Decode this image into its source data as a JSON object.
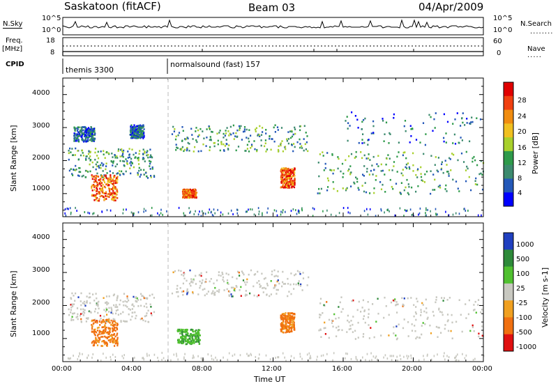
{
  "header": {
    "station": "Saskatoon (fitACF)",
    "beam": "Beam 03",
    "date": "04/Apr/2009"
  },
  "strip": {
    "nsky_label": "N.Sky",
    "nsearch_label": "N.Search",
    "nave_label": "Nave",
    "freq_label": "Freq.",
    "mhz_label": "[MHz]",
    "cpid_label": "CPID",
    "left_ticks_top": [
      "10^5",
      "10^0"
    ],
    "right_ticks_top": [
      "10^5",
      "10^0"
    ],
    "left_ticks_freq": [
      "18",
      "8"
    ],
    "right_ticks_nave": [
      "60",
      "0"
    ],
    "cpid_modes": [
      "themis 3300",
      "normalsound (fast) 157"
    ]
  },
  "colors": {
    "power": [
      "#0000ff",
      "#2458b8",
      "#3c8a6e",
      "#2e9a4a",
      "#a8d02c",
      "#f0c020",
      "#f08c10",
      "#f04010",
      "#e00000"
    ],
    "velocity": [
      "#2040c0",
      "#2e8a3a",
      "#50c030",
      "#c8c8c0",
      "#f0a020",
      "#f07010",
      "#e01010"
    ]
  },
  "chart_data": [
    {
      "type": "heatmap",
      "panel": "power",
      "ylabel": "Slant Range [km]",
      "xlabel": "",
      "yticks": [
        "1000",
        "2000",
        "3000",
        "4000"
      ],
      "ylim": [
        300,
        4500
      ],
      "colorbar_label": "Power [dB]",
      "colorbar_ticks": [
        "4",
        "8",
        "12",
        "16",
        "20",
        "24",
        "28"
      ],
      "colorbar_range": [
        0,
        30
      ],
      "features": [
        {
          "t0": 0.3,
          "t1": 5.2,
          "r0": 1500,
          "r1": 2400,
          "level": "mid"
        },
        {
          "t0": 0.6,
          "t1": 1.8,
          "r0": 2600,
          "r1": 3050,
          "level": "low"
        },
        {
          "t0": 1.6,
          "t1": 3.1,
          "r0": 800,
          "r1": 1600,
          "level": "high"
        },
        {
          "t0": 3.8,
          "t1": 4.6,
          "r0": 2700,
          "r1": 3100,
          "level": "low"
        },
        {
          "t0": 6.2,
          "t1": 14.0,
          "r0": 2300,
          "r1": 3100,
          "level": "mid"
        },
        {
          "t0": 6.8,
          "t1": 7.6,
          "r0": 900,
          "r1": 1150,
          "level": "high"
        },
        {
          "t0": 12.4,
          "t1": 13.2,
          "r0": 1200,
          "r1": 1800,
          "level": "high"
        },
        {
          "t0": 14.5,
          "t1": 24.0,
          "r0": 1000,
          "r1": 2300,
          "level": "mid"
        },
        {
          "t0": 16.0,
          "t1": 23.8,
          "r0": 2500,
          "r1": 3500,
          "level": "sparse"
        }
      ]
    },
    {
      "type": "heatmap",
      "panel": "velocity",
      "ylabel": "Slant Range [km]",
      "xlabel": "Time UT",
      "xticks": [
        "00:00",
        "04:00",
        "08:00",
        "12:00",
        "16:00",
        "20:00",
        "00:00"
      ],
      "yticks": [
        "1000",
        "2000",
        "3000",
        "4000"
      ],
      "ylim": [
        300,
        4500
      ],
      "colorbar_label": "Velocity [m s-1]",
      "colorbar_ticks": [
        "1000",
        "500",
        "100",
        "25",
        "-25",
        "-100",
        "-500",
        "-1000"
      ],
      "features": [
        {
          "t0": 0.3,
          "t1": 5.2,
          "r0": 1500,
          "r1": 2400,
          "level": "neutral"
        },
        {
          "t0": 1.6,
          "t1": 3.1,
          "r0": 800,
          "r1": 1600,
          "level": "away"
        },
        {
          "t0": 6.2,
          "t1": 14.0,
          "r0": 2300,
          "r1": 3100,
          "level": "neutral"
        },
        {
          "t0": 6.5,
          "t1": 7.8,
          "r0": 850,
          "r1": 1300,
          "level": "toward"
        },
        {
          "t0": 12.4,
          "t1": 13.2,
          "r0": 1200,
          "r1": 1800,
          "level": "away"
        },
        {
          "t0": 14.5,
          "t1": 24.0,
          "r0": 1000,
          "r1": 2300,
          "level": "neutral"
        }
      ]
    }
  ]
}
